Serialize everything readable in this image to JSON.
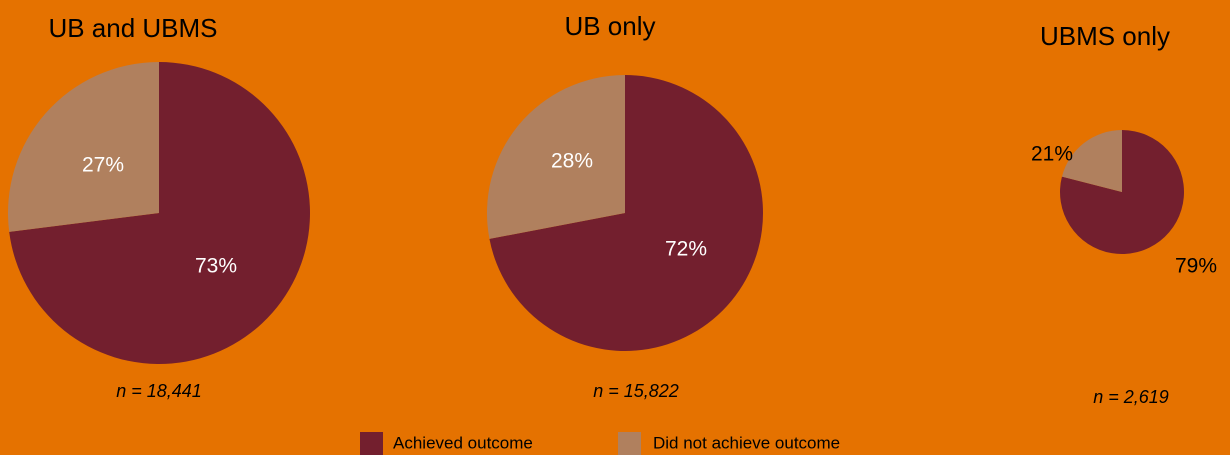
{
  "legend": {
    "labels": [
      "Achieved outcome",
      "Did not achieve outcome"
    ],
    "colors": [
      "#731f2e",
      "#b0805e"
    ]
  },
  "chart_data": [
    {
      "type": "pie",
      "title": "UB and UBMS",
      "values": [
        73,
        27
      ],
      "value_labels": [
        "73%",
        "27%"
      ],
      "annotation": "n = 18,441"
    },
    {
      "type": "pie",
      "title": "UB only",
      "values": [
        72,
        28
      ],
      "value_labels": [
        "72%",
        "28%"
      ],
      "annotation": "n = 15,822"
    },
    {
      "type": "pie",
      "title": "UBMS only",
      "values": [
        79,
        21
      ],
      "value_labels": [
        "79%",
        "21%"
      ],
      "annotation": "n = 2,619"
    }
  ]
}
